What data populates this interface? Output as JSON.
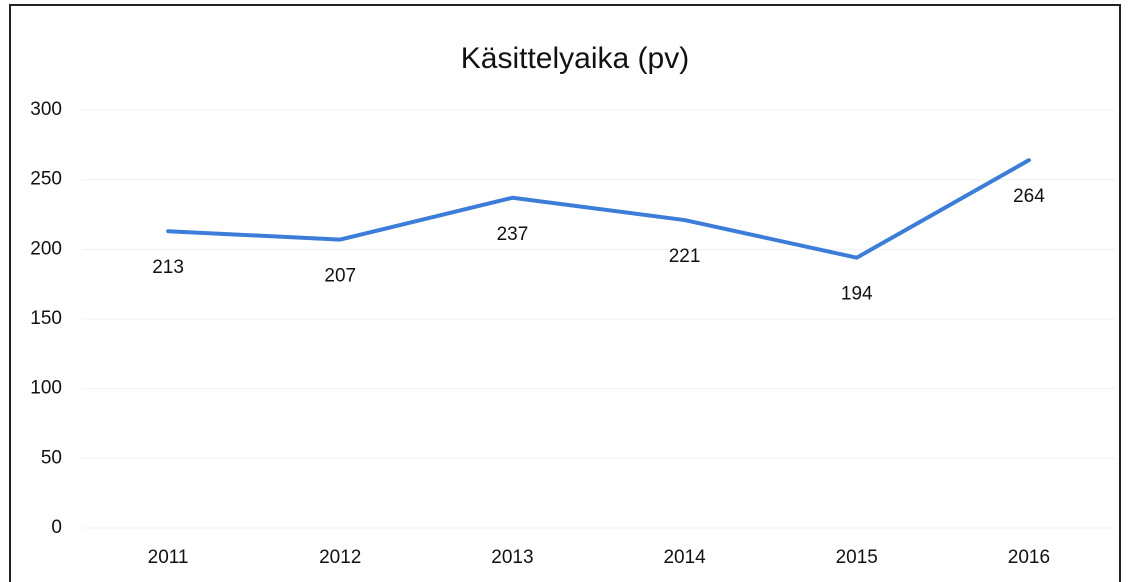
{
  "chart_data": {
    "type": "line",
    "title": "Käsittelyaika (pv)",
    "categories": [
      "2011",
      "2012",
      "2013",
      "2014",
      "2015",
      "2016"
    ],
    "series": [
      {
        "name": "Käsittelyaika",
        "color": "#3b7dd8",
        "values": [
          213,
          207,
          237,
          221,
          194,
          264
        ]
      }
    ],
    "ylim": [
      0,
      300
    ],
    "yticks": [
      0,
      50,
      100,
      150,
      200,
      250,
      300
    ],
    "grid": true
  }
}
